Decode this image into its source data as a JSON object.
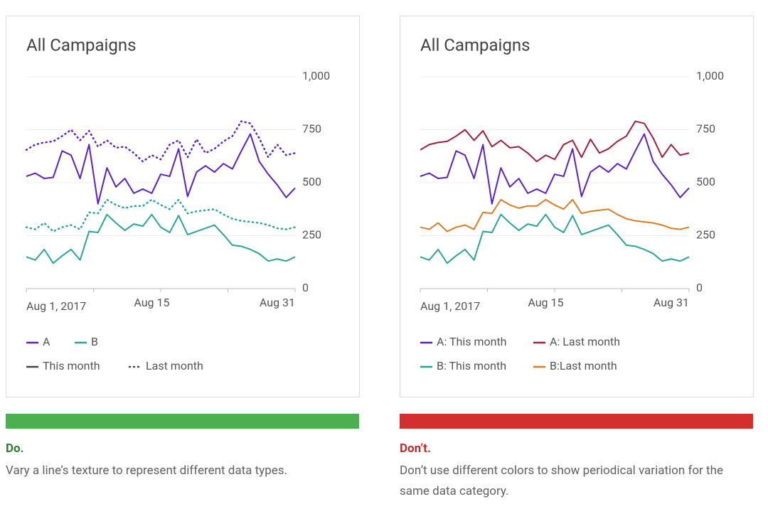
{
  "chart_data": [
    {
      "type": "line",
      "title": "All Campaigns",
      "categories": [
        "Aug 1, 2017",
        null,
        null,
        null,
        null,
        null,
        null,
        null,
        null,
        null,
        null,
        null,
        null,
        null,
        "Aug 15",
        null,
        null,
        null,
        null,
        null,
        null,
        null,
        null,
        null,
        null,
        null,
        null,
        null,
        null,
        null,
        "Aug 31"
      ],
      "ylim": [
        0,
        1000
      ],
      "yticks": [
        0,
        250,
        500,
        750,
        {
          "value": 1000,
          "label": "1,000"
        }
      ],
      "grid": true,
      "series": [
        {
          "color": "#5b1fce",
          "line": "solid",
          "values": [
            530,
            545,
            520,
            525,
            650,
            630,
            520,
            680,
            400,
            570,
            480,
            520,
            450,
            470,
            450,
            540,
            530,
            660,
            435,
            550,
            580,
            550,
            590,
            565,
            650,
            730,
            600,
            540,
            490,
            430,
            475
          ]
        },
        {
          "color": "#5b1fce",
          "line": "dotted",
          "values": [
            655,
            680,
            690,
            695,
            720,
            750,
            700,
            745,
            670,
            700,
            665,
            670,
            640,
            600,
            630,
            610,
            680,
            700,
            620,
            705,
            640,
            660,
            695,
            720,
            790,
            780,
            710,
            620,
            680,
            630,
            640
          ]
        },
        {
          "color": "#26a69a",
          "line": "solid",
          "values": [
            150,
            135,
            185,
            120,
            155,
            185,
            135,
            270,
            265,
            350,
            310,
            275,
            305,
            295,
            350,
            290,
            265,
            345,
            255,
            270,
            285,
            300,
            255,
            205,
            200,
            185,
            165,
            130,
            140,
            130,
            150
          ]
        },
        {
          "color": "#26a69a",
          "line": "dotted",
          "values": [
            290,
            280,
            310,
            270,
            290,
            300,
            280,
            360,
            355,
            420,
            395,
            380,
            390,
            390,
            420,
            395,
            375,
            420,
            355,
            365,
            370,
            375,
            350,
            330,
            320,
            315,
            310,
            300,
            285,
            280,
            290
          ]
        }
      ],
      "legend": [
        {
          "label": "A",
          "color": "#5b1fce",
          "line": "solid"
        },
        {
          "label": "B",
          "color": "#26a69a",
          "line": "solid"
        },
        {
          "label": "This month",
          "color": "#444444",
          "line": "solid"
        },
        {
          "label": "Last month",
          "color": "#444444",
          "line": "dotted"
        }
      ]
    },
    {
      "type": "line",
      "title": "All Campaigns",
      "categories": [
        "Aug 1, 2017",
        null,
        null,
        null,
        null,
        null,
        null,
        null,
        null,
        null,
        null,
        null,
        null,
        null,
        "Aug 15",
        null,
        null,
        null,
        null,
        null,
        null,
        null,
        null,
        null,
        null,
        null,
        null,
        null,
        null,
        null,
        "Aug 31"
      ],
      "ylim": [
        0,
        1000
      ],
      "yticks": [
        0,
        250,
        500,
        750,
        {
          "value": 1000,
          "label": "1,000"
        }
      ],
      "grid": true,
      "series": [
        {
          "name": "A: This month",
          "color": "#5b1fce",
          "line": "solid",
          "values": [
            530,
            545,
            520,
            525,
            650,
            630,
            520,
            680,
            400,
            570,
            480,
            520,
            450,
            470,
            450,
            540,
            530,
            660,
            435,
            550,
            580,
            550,
            590,
            565,
            650,
            730,
            600,
            540,
            490,
            430,
            475
          ]
        },
        {
          "name": "A: Last month",
          "color": "#a51d3a",
          "line": "solid",
          "values": [
            655,
            680,
            690,
            695,
            720,
            750,
            700,
            745,
            670,
            700,
            665,
            670,
            640,
            600,
            630,
            610,
            680,
            700,
            620,
            705,
            640,
            660,
            695,
            720,
            790,
            780,
            710,
            620,
            680,
            630,
            640
          ]
        },
        {
          "name": "B: This month",
          "color": "#26a69a",
          "line": "solid",
          "values": [
            150,
            135,
            185,
            120,
            155,
            185,
            135,
            270,
            265,
            350,
            310,
            275,
            305,
            295,
            350,
            290,
            265,
            345,
            255,
            270,
            285,
            300,
            255,
            205,
            200,
            185,
            165,
            130,
            140,
            130,
            150
          ]
        },
        {
          "name": "B:Last month",
          "color": "#e07b20",
          "line": "solid",
          "values": [
            290,
            280,
            310,
            270,
            290,
            300,
            280,
            360,
            355,
            420,
            395,
            380,
            390,
            390,
            420,
            395,
            375,
            420,
            355,
            365,
            370,
            375,
            350,
            330,
            320,
            315,
            310,
            300,
            285,
            280,
            290
          ]
        }
      ]
    }
  ],
  "captions": [
    {
      "label": "Do.",
      "text": "Vary a line’s texture to represent different data types.",
      "color": "#4caf50",
      "label_color": "#2e7d32"
    },
    {
      "label": "Don’t.",
      "text": "Don’t use different colors to show periodical variation for the same data category.",
      "color": "#d32f2f",
      "label_color": "#c62828"
    }
  ]
}
